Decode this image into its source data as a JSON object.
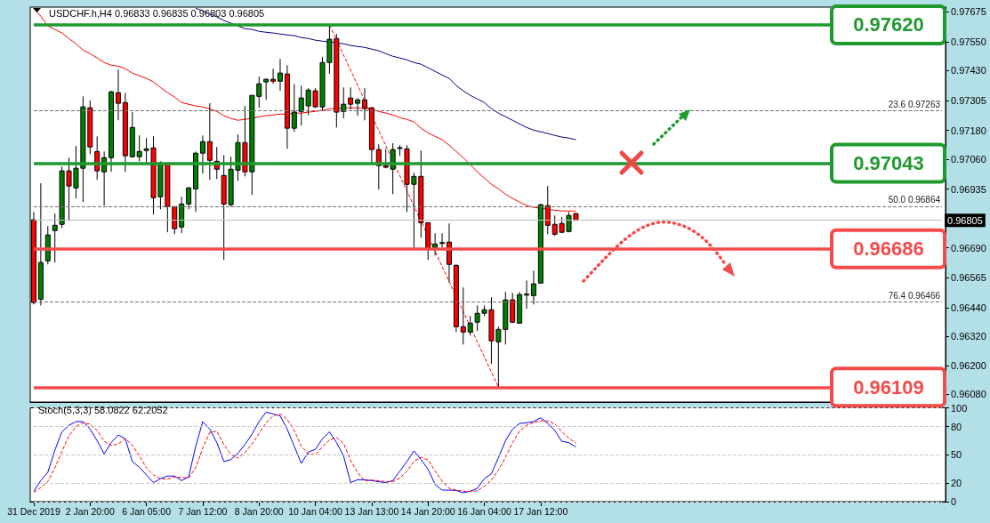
{
  "chart_data": [
    {
      "type": "candlestick",
      "title": "USDCHF.h,H4 0.96833 0.96835 0.96803 0.96805",
      "categories": [
        null,
        null,
        null,
        null,
        null,
        null,
        null,
        null,
        null,
        null,
        null,
        null,
        null,
        null,
        null,
        null,
        null,
        null,
        null,
        null,
        null,
        null,
        null,
        null,
        null,
        null,
        null,
        null,
        null,
        null,
        null,
        null,
        null,
        null,
        null,
        null,
        null,
        null,
        null,
        null,
        null,
        null,
        null,
        null,
        null,
        null,
        null,
        null,
        null,
        null,
        null,
        null,
        null,
        null,
        null,
        null,
        null,
        null,
        null,
        null,
        null,
        null,
        null,
        null,
        null,
        null,
        null,
        null,
        null,
        null,
        null,
        null,
        null,
        null,
        null,
        null,
        null,
        null,
        null,
        null,
        null,
        null,
        null,
        null,
        null,
        null,
        null,
        null,
        null,
        null,
        null,
        null,
        null,
        null,
        null,
        null,
        null,
        null,
        null,
        null,
        null,
        null,
        null,
        null,
        null,
        null,
        null,
        null,
        null,
        null,
        null,
        null,
        null,
        null,
        null,
        null,
        null,
        null,
        null,
        null,
        null,
        null,
        null,
        null,
        null,
        null,
        null,
        null,
        null,
        null
      ],
      "ohlc": [
        [
          0.96807,
          0.9684,
          0.96454,
          0.96462
        ],
        [
          0.96476,
          0.96959,
          0.9645,
          0.96629
        ],
        [
          0.96636,
          0.96781,
          0.96621,
          0.96744
        ],
        [
          0.96762,
          0.96833,
          0.96629,
          0.96784
        ],
        [
          0.96788,
          0.97029,
          0.96773,
          0.97011
        ],
        [
          0.97011,
          0.97066,
          0.96803,
          0.96948
        ],
        [
          0.9694,
          0.97115,
          0.96896,
          0.97022
        ],
        [
          0.97022,
          0.97322,
          0.96881,
          0.97278
        ],
        [
          0.97274,
          0.97304,
          0.97081,
          0.97111
        ],
        [
          0.97092,
          0.97155,
          0.96974,
          0.97011
        ],
        [
          0.97007,
          0.97092,
          0.96866,
          0.97066
        ],
        [
          0.97066,
          0.97345,
          0.97007,
          0.97341
        ],
        [
          0.97337,
          0.97434,
          0.97222,
          0.97293
        ],
        [
          0.97296,
          0.97337,
          0.97007,
          0.97074
        ],
        [
          0.9707,
          0.97256,
          0.97066,
          0.97192
        ],
        [
          0.9707,
          0.97159,
          0.97051,
          0.97092
        ],
        [
          0.97096,
          0.97148,
          0.97037,
          0.97103
        ],
        [
          0.97107,
          0.97155,
          0.96829,
          0.96899
        ],
        [
          0.96903,
          0.97051,
          0.96851,
          0.97044
        ],
        [
          0.97044,
          0.97044,
          0.96755,
          0.96862
        ],
        [
          0.96862,
          0.96862,
          0.96747,
          0.9677
        ],
        [
          0.96777,
          0.96903,
          0.96751,
          0.96873
        ],
        [
          0.96873,
          0.96944,
          0.96851,
          0.9694
        ],
        [
          0.96936,
          0.97092,
          0.9684,
          0.97085
        ],
        [
          0.97085,
          0.97159,
          0.97,
          0.97133
        ],
        [
          0.97133,
          0.97293,
          0.96974,
          0.97055
        ],
        [
          0.97051,
          0.97111,
          0.96977,
          0.97018
        ],
        [
          0.96992,
          0.97077,
          0.9664,
          0.96873
        ],
        [
          0.9687,
          0.9707,
          0.96862,
          0.97018
        ],
        [
          0.97014,
          0.97163,
          0.9697,
          0.97129
        ],
        [
          0.97129,
          0.97282,
          0.96988,
          0.97007
        ],
        [
          0.97007,
          0.97326,
          0.96911,
          0.97326
        ],
        [
          0.97322,
          0.97404,
          0.97274,
          0.97374
        ],
        [
          0.97382,
          0.97397,
          0.97307,
          0.97393
        ],
        [
          0.97393,
          0.97437,
          0.97374,
          0.97385
        ],
        [
          0.97385,
          0.97478,
          0.97345,
          0.97419
        ],
        [
          0.97415,
          0.97452,
          0.97103,
          0.97189
        ],
        [
          0.97189,
          0.97374,
          0.97174,
          0.97256
        ],
        [
          0.97259,
          0.97367,
          0.972,
          0.97315
        ],
        [
          0.97282,
          0.97356,
          0.97244,
          0.97348
        ],
        [
          0.97345,
          0.97356,
          0.97274,
          0.97278
        ],
        [
          0.97278,
          0.97486,
          0.97263,
          0.97463
        ],
        [
          0.97463,
          0.9762,
          0.97415,
          0.9756
        ],
        [
          0.97563,
          0.97582,
          0.97192,
          0.97256
        ],
        [
          0.97259,
          0.97359,
          0.9723,
          0.97289
        ],
        [
          0.97315,
          0.97359,
          0.97267,
          0.97289
        ],
        [
          0.97293,
          0.97315,
          0.97241,
          0.97307
        ],
        [
          0.97307,
          0.97356,
          0.97222,
          0.97274
        ],
        [
          0.97274,
          0.97278,
          0.97044,
          0.971
        ],
        [
          0.971,
          0.97122,
          0.96933,
          0.97033
        ],
        [
          0.97033,
          0.97103,
          0.97022,
          0.97026
        ],
        [
          0.97018,
          0.97126,
          0.96914,
          0.971
        ],
        [
          0.97105,
          0.97118,
          0.97074,
          0.97108
        ],
        [
          0.97103,
          0.97118,
          0.9684,
          0.96955
        ],
        [
          0.96955,
          0.97003,
          0.96684,
          0.96988
        ],
        [
          0.96988,
          0.97096,
          0.96732,
          0.96795
        ],
        [
          0.96795,
          0.96795,
          0.9664,
          0.96688
        ],
        [
          0.96692,
          0.96751,
          0.96658,
          0.96706
        ],
        [
          0.9671,
          0.96751,
          0.96692,
          0.96712
        ],
        [
          0.96714,
          0.96792,
          0.96547,
          0.96621
        ],
        [
          0.96617,
          0.96621,
          0.96339,
          0.96361
        ],
        [
          0.96361,
          0.96525,
          0.96287,
          0.96339
        ],
        [
          0.96339,
          0.96406,
          0.96324,
          0.96376
        ],
        [
          0.9638,
          0.9645,
          0.96343,
          0.96417
        ],
        [
          0.96417,
          0.9645,
          0.96406,
          0.96432
        ],
        [
          0.96432,
          0.96484,
          0.96206,
          0.96302
        ],
        [
          0.96298,
          0.96361,
          0.96109,
          0.9635
        ],
        [
          0.9635,
          0.96506,
          0.96287,
          0.96473
        ],
        [
          0.96473,
          0.96502,
          0.96376,
          0.9638
        ],
        [
          0.96376,
          0.96506,
          0.96373,
          0.96495
        ],
        [
          0.96493,
          0.96554,
          0.96436,
          0.96497
        ],
        [
          0.96491,
          0.96595,
          0.96454,
          0.9654
        ],
        [
          0.96543,
          0.96873,
          0.96543,
          0.9687
        ],
        [
          0.96866,
          0.96948,
          0.96747,
          0.96784
        ],
        [
          0.96788,
          0.96825,
          0.9674,
          0.96747
        ],
        [
          0.96792,
          0.96818,
          0.96751,
          0.96755
        ],
        [
          0.96758,
          0.9684,
          0.96755,
          0.96825
        ],
        [
          0.96833,
          0.96835,
          0.96803,
          0.96805
        ],
        null,
        null,
        null,
        null,
        null,
        null,
        null,
        null,
        null,
        null,
        null,
        null,
        null,
        null,
        null,
        null,
        null,
        null,
        null,
        null,
        null,
        null,
        null,
        null,
        null,
        null,
        null,
        null,
        null,
        null,
        null,
        null,
        null,
        null,
        null,
        null,
        null,
        null,
        null,
        null,
        null,
        null,
        null,
        null,
        null,
        null,
        null,
        null,
        null,
        null,
        null,
        null
      ],
      "series": [
        {
          "type": "line",
          "color": "#ff0000",
          "values": [
            0.9769,
            0.97656,
            0.97615,
            0.97601,
            0.97586,
            0.97563,
            0.97541,
            0.97515,
            0.975,
            0.97482,
            0.97463,
            0.97452,
            0.97448,
            0.97437,
            0.97419,
            0.97408,
            0.97397,
            0.97382,
            0.97359,
            0.97337,
            0.97319,
            0.97296,
            0.97289,
            0.97282,
            0.97278,
            0.9727,
            0.97259,
            0.97241,
            0.9723,
            0.97222,
            0.97226,
            0.9723,
            0.97237,
            0.97241,
            0.97244,
            0.97248,
            0.97248,
            0.97252,
            0.97252,
            0.97256,
            0.97259,
            0.97263,
            0.9727,
            0.9727,
            0.97274,
            0.97274,
            0.97274,
            0.9727,
            0.97267,
            0.97259,
            0.97252,
            0.97244,
            0.97233,
            0.97226,
            0.97215,
            0.97189,
            0.9717,
            0.97155,
            0.97141,
            0.97118,
            0.97092,
            0.97066,
            0.97037,
            0.97007,
            0.96981,
            0.96955,
            0.96936,
            0.96914,
            0.96896,
            0.96881,
            0.96866,
            0.96859,
            0.96855,
            0.96851,
            0.96847,
            0.96844,
            0.96844,
            0.96844,
            null,
            null,
            null,
            null,
            null,
            null,
            null,
            null,
            null,
            null,
            null,
            null,
            null,
            null,
            null,
            null,
            null,
            null,
            null,
            null,
            null,
            null,
            null,
            null,
            null,
            null,
            null,
            null,
            null,
            null,
            null,
            null,
            null,
            null,
            null,
            null,
            null,
            null,
            null,
            null,
            null,
            null,
            null,
            null,
            null,
            null,
            null,
            null,
            null,
            null,
            null,
            null
          ]
        },
        {
          "type": "line",
          "color": "#000080",
          "values": [
            null,
            null,
            null,
            null,
            null,
            null,
            null,
            null,
            null,
            null,
            null,
            null,
            null,
            null,
            null,
            null,
            null,
            null,
            null,
            null,
            null,
            null,
            null,
            0.9769,
            0.97678,
            0.97667,
            0.97653,
            0.97638,
            0.97627,
            0.97615,
            0.97604,
            0.97601,
            0.97593,
            0.97589,
            0.97586,
            0.97582,
            0.97578,
            0.97575,
            0.97567,
            0.97563,
            0.97556,
            0.97552,
            0.97549,
            0.97545,
            0.97541,
            0.97534,
            0.9753,
            0.97526,
            0.97519,
            0.97512,
            0.975,
            0.97489,
            0.97482,
            0.97474,
            0.97463,
            0.97456,
            0.97441,
            0.97426,
            0.97411,
            0.97397,
            0.97367,
            0.97345,
            0.97326,
            0.97311,
            0.97296,
            0.9727,
            0.97252,
            0.97237,
            0.97222,
            0.97207,
            0.97192,
            0.97181,
            0.97174,
            0.97167,
            0.97159,
            0.97152,
            0.97148,
            0.97141,
            null,
            null,
            null,
            null,
            null,
            null,
            null,
            null,
            null,
            null,
            null,
            null,
            null,
            null,
            null,
            null,
            null,
            null,
            null,
            null,
            null,
            null,
            null,
            null,
            null,
            null,
            null,
            null,
            null,
            null,
            null,
            null,
            null,
            null,
            null,
            null,
            null,
            null,
            null,
            null,
            null,
            null,
            null,
            null,
            null,
            null,
            null,
            null,
            null,
            null,
            null,
            null
          ]
        },
        {
          "type": "line",
          "color": "#ff0000",
          "line_style": "dashed",
          "values": [
            null,
            null,
            null,
            null,
            null,
            null,
            null,
            null,
            null,
            null,
            null,
            null,
            null,
            null,
            null,
            null,
            null,
            null,
            null,
            null,
            null,
            null,
            null,
            null,
            null,
            null,
            null,
            null,
            null,
            null,
            null,
            null,
            null,
            null,
            null,
            null,
            null,
            null,
            null,
            null,
            null,
            null,
            0.9762,
            null,
            null,
            null,
            null,
            null,
            null,
            null,
            null,
            null,
            null,
            null,
            null,
            null,
            null,
            null,
            null,
            null,
            null,
            null,
            null,
            null,
            null,
            null,
            0.96109,
            null,
            null,
            null,
            null,
            null,
            null,
            null,
            null,
            null,
            null,
            null,
            null,
            null,
            null,
            null,
            null,
            null,
            null,
            null,
            null,
            null,
            null,
            null,
            null,
            null,
            null,
            null,
            null,
            null,
            null,
            null,
            null,
            null,
            null,
            null,
            null,
            null,
            null,
            null,
            null,
            null,
            null,
            null,
            null,
            null,
            null,
            null,
            null,
            null,
            null,
            null,
            null,
            null,
            null,
            null,
            null,
            null,
            null,
            null,
            null,
            null,
            null,
            null
          ]
        }
      ],
      "ylim": [
        0.96047,
        0.97694
      ],
      "yticks": [
        {
          "value": 0.9608,
          "label": "0.96080"
        },
        {
          "value": 0.962,
          "label": "0.96200"
        },
        {
          "value": 0.9632,
          "label": "0.96320"
        },
        {
          "value": 0.9644,
          "label": "0.96440"
        },
        {
          "value": 0.96565,
          "label": "0.96565"
        },
        {
          "value": 0.9669,
          "label": "0.96690"
        },
        {
          "value": 0.96935,
          "label": "0.96935"
        },
        {
          "value": 0.9706,
          "label": "0.97060"
        },
        {
          "value": 0.9718,
          "label": "0.97180"
        },
        {
          "value": 0.97305,
          "label": "0.97305"
        },
        {
          "value": 0.9743,
          "label": "0.97430"
        },
        {
          "value": 0.9755,
          "label": "0.97550"
        },
        {
          "value": 0.97675,
          "label": "0.97675"
        }
      ],
      "ref_lines": [
        {
          "axis": "y",
          "value": 0.97263,
          "label": "23.6 0.97263",
          "color": "#707070",
          "line_style": "dashed"
        },
        {
          "axis": "y",
          "value": 0.97043,
          "color": "#707070",
          "line_style": "dashed"
        },
        {
          "axis": "y",
          "value": 0.96864,
          "label": "50.0 0.96864",
          "color": "#707070",
          "line_style": "dashed"
        },
        {
          "axis": "y",
          "value": 0.96466,
          "label": "76.4 0.96466",
          "color": "#707070",
          "line_style": "dashed"
        },
        {
          "axis": "y",
          "value": 0.96109,
          "color": "#707070",
          "line_style": "dashed"
        },
        {
          "axis": "y",
          "value": 0.96805,
          "label": "0.96805",
          "color": "#c0c0c0"
        },
        {
          "axis": "y",
          "value": 0.9762,
          "label": "0.97620",
          "color": "#1f9a2e",
          "line_style": "solid"
        },
        {
          "axis": "y",
          "value": 0.97043,
          "label": "0.97043",
          "color": "#1f9a2e",
          "line_style": "solid"
        },
        {
          "axis": "y",
          "value": 0.96686,
          "label": "0.96686",
          "color": "#f44b4b",
          "line_style": "solid"
        },
        {
          "axis": "y",
          "value": 0.96109,
          "label": "0.96109",
          "color": "#f44b4b",
          "line_style": "solid"
        }
      ],
      "tick_labels": "y"
    },
    {
      "type": "line",
      "title": "Stoch(5,3,3) 58.0822 62.2052",
      "categories": [
        "31 Dec 2019",
        null,
        null,
        null,
        null,
        null,
        null,
        null,
        "2 Jan 20:00",
        null,
        null,
        null,
        null,
        null,
        null,
        null,
        "6 Jan 05:00",
        null,
        null,
        null,
        null,
        null,
        null,
        null,
        "7 Jan 12:00",
        null,
        null,
        null,
        null,
        null,
        null,
        null,
        "8 Jan 20:00",
        null,
        null,
        null,
        null,
        null,
        null,
        null,
        "10 Jan 04:00",
        null,
        null,
        null,
        null,
        null,
        null,
        null,
        "13 Jan 13:00",
        null,
        null,
        null,
        null,
        null,
        null,
        null,
        "14 Jan 20:00",
        null,
        null,
        null,
        null,
        null,
        null,
        null,
        "16 Jan 04:00",
        null,
        null,
        null,
        null,
        null,
        null,
        null,
        "17 Jan 12:00",
        null,
        null,
        null,
        null,
        null,
        null,
        null,
        null,
        null,
        null,
        null,
        null,
        null,
        null,
        null,
        null,
        null,
        null,
        null,
        null,
        null,
        null,
        null,
        null,
        null,
        null,
        null,
        null,
        null,
        null,
        null,
        null,
        null,
        null,
        null,
        null,
        null,
        null,
        null,
        null,
        null,
        null,
        null,
        null,
        null,
        null,
        null,
        null,
        null,
        null,
        null,
        null,
        null,
        null,
        null,
        null,
        null
      ],
      "series": [
        {
          "color": "#0000ff",
          "values": [
            11.1,
            22.4,
            31.4,
            54.9,
            74.4,
            81.3,
            85.3,
            85.3,
            77.2,
            65.0,
            50.8,
            63.0,
            71.1,
            67.1,
            42.7,
            36.6,
            28.5,
            20.4,
            24.5,
            27.3,
            27.3,
            22.4,
            26.5,
            59.0,
            85.3,
            77.2,
            63.0,
            42.7,
            44.8,
            51.7,
            61.0,
            71.9,
            85.3,
            95.5,
            93.5,
            91.4,
            77.2,
            59.0,
            40.7,
            52.9,
            55.7,
            67.1,
            74.4,
            63.0,
            48.8,
            20.4,
            23.3,
            23.3,
            22.4,
            21.2,
            20.4,
            22.4,
            32.6,
            42.7,
            54.1,
            44.8,
            34.6,
            18.4,
            12.3,
            12.3,
            11.9,
            9.5,
            11.1,
            14.3,
            24.5,
            29.8,
            46.8,
            65.0,
            77.2,
            83.3,
            84.1,
            85.3,
            89.4,
            83.3,
            76.0,
            64.2,
            63.0,
            58.08,
            null,
            null,
            null,
            null,
            null,
            null,
            null,
            null,
            null,
            null,
            null,
            null,
            null,
            null,
            null,
            null,
            null,
            null,
            null,
            null,
            null,
            null,
            null,
            null,
            null,
            null,
            null,
            null,
            null,
            null,
            null,
            null,
            null,
            null,
            null,
            null,
            null,
            null,
            null,
            null,
            null,
            null,
            null,
            null,
            null,
            null,
            null,
            null,
            null,
            null,
            null,
            null
          ]
        },
        {
          "color": "#ff0000",
          "line_style": "dashed",
          "values": [
            10,
            15,
            21.6,
            36.2,
            53.6,
            70.2,
            80.3,
            84.0,
            82.6,
            75.8,
            64.3,
            59.6,
            61.6,
            67.1,
            60.3,
            48.8,
            35.9,
            28.5,
            24.5,
            24.1,
            26.4,
            25.7,
            25.4,
            36.0,
            56.9,
            73.8,
            75.2,
            61.0,
            50.2,
            46.4,
            52.5,
            61.5,
            72.7,
            84.2,
            91.4,
            93.5,
            87.4,
            75.9,
            59.0,
            50.9,
            49.8,
            58.6,
            65.7,
            68.2,
            62.1,
            44.1,
            30.8,
            22.3,
            23.0,
            22.3,
            21.3,
            21.3,
            25.1,
            32.6,
            43.1,
            47.2,
            44.5,
            32.6,
            21.8,
            14.3,
            12.2,
            11.2,
            10.8,
            11.6,
            16.6,
            22.9,
            33.7,
            47.2,
            63.0,
            75.2,
            81.5,
            84.2,
            86.3,
            86.0,
            82.9,
            74.5,
            67.7,
            62.21,
            null,
            null,
            null,
            null,
            null,
            null,
            null,
            null,
            null,
            null,
            null,
            null,
            null,
            null,
            null,
            null,
            null,
            null,
            null,
            null,
            null,
            null,
            null,
            null,
            null,
            null,
            null,
            null,
            null,
            null,
            null,
            null,
            null,
            null,
            null,
            null,
            null,
            null,
            null,
            null,
            null,
            null,
            null,
            null,
            null,
            null,
            null,
            null,
            null,
            null,
            null,
            null
          ]
        }
      ],
      "ylim": [
        0,
        100
      ],
      "yticks": [
        0,
        20,
        50,
        80,
        100
      ],
      "grid": "y"
    }
  ]
}
